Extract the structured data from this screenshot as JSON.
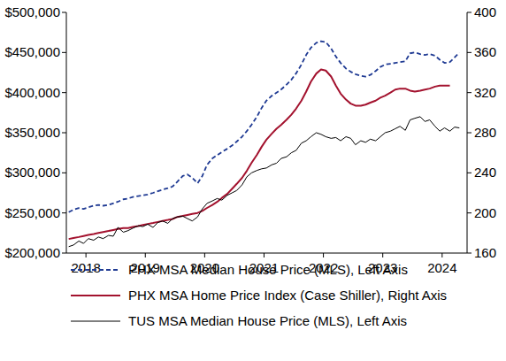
{
  "chart_data": {
    "type": "line",
    "x": [
      2018.21,
      2018.29,
      2018.38,
      2018.46,
      2018.54,
      2018.63,
      2018.71,
      2018.79,
      2018.88,
      2018.96,
      2019.04,
      2019.13,
      2019.21,
      2019.29,
      2019.38,
      2019.46,
      2019.54,
      2019.63,
      2019.71,
      2019.79,
      2019.88,
      2019.96,
      2020.04,
      2020.13,
      2020.21,
      2020.29,
      2020.38,
      2020.46,
      2020.54,
      2020.63,
      2020.71,
      2020.79,
      2020.88,
      2020.96,
      2021.04,
      2021.13,
      2021.21,
      2021.29,
      2021.38,
      2021.46,
      2021.54,
      2021.63,
      2021.71,
      2021.79,
      2021.88,
      2021.96,
      2022.04,
      2022.13,
      2022.21,
      2022.29,
      2022.38,
      2022.46,
      2022.54,
      2022.63,
      2022.71,
      2022.79,
      2022.88,
      2022.96,
      2023.04,
      2023.13,
      2023.21,
      2023.29,
      2023.38,
      2023.46,
      2023.54,
      2023.63,
      2023.71,
      2023.79,
      2023.88,
      2023.96,
      2024.04,
      2024.13,
      2024.21,
      2024.29,
      2024.38,
      2024.46,
      2024.54,
      2024.63,
      2024.71,
      2024.79
    ],
    "xlim": [
      2018.17,
      2024.92
    ],
    "xticks": [
      {
        "value": 2018.5,
        "label": "2018"
      },
      {
        "value": 2019.5,
        "label": "2019"
      },
      {
        "value": 2020.5,
        "label": "2020"
      },
      {
        "value": 2021.5,
        "label": "2021"
      },
      {
        "value": 2022.5,
        "label": "2022"
      },
      {
        "value": 2023.5,
        "label": "2023"
      },
      {
        "value": 2024.5,
        "label": "2024"
      }
    ],
    "ylim": [
      200000,
      500000
    ],
    "yticks": [
      {
        "value": 200000,
        "label": "$200,000"
      },
      {
        "value": 250000,
        "label": "$250,000"
      },
      {
        "value": 300000,
        "label": "$300,000"
      },
      {
        "value": 350000,
        "label": "$350,000"
      },
      {
        "value": 400000,
        "label": "$400,000"
      },
      {
        "value": 450000,
        "label": "$450,000"
      },
      {
        "value": 500000,
        "label": "$500,000"
      }
    ],
    "y2lim": [
      160,
      400
    ],
    "y2ticks": [
      160,
      200,
      240,
      280,
      320,
      360,
      400
    ],
    "grid": false,
    "legend": "bottom",
    "series": [
      {
        "name": "PHX MSA Median House Price (MLS), Left Axis",
        "color": "#1f3a93",
        "line_style": "dashed",
        "values": [
          251000,
          254000,
          256000,
          255000,
          257000,
          259000,
          260000,
          259000,
          260000,
          262000,
          264000,
          267000,
          268000,
          270000,
          271000,
          272000,
          273000,
          275000,
          277000,
          279000,
          281000,
          283000,
          289000,
          296000,
          298000,
          294000,
          287000,
          296000,
          310000,
          318000,
          322000,
          326000,
          330000,
          334000,
          339000,
          345000,
          352000,
          360000,
          370000,
          381000,
          390000,
          396000,
          400000,
          404000,
          410000,
          416000,
          424000,
          435000,
          447000,
          456000,
          462000,
          464000,
          463000,
          455000,
          445000,
          437000,
          430000,
          426000,
          423000,
          421000,
          420000,
          422000,
          427000,
          432000,
          435000,
          436000,
          437000,
          438000,
          439000,
          449000,
          450000,
          448000,
          447000,
          448000,
          446000,
          441000,
          437000,
          438000,
          444000,
          450000
        ]
      },
      {
        "name": "PHX MSA Home Price Index (Case Shiller), Right Axis",
        "color": "#a3122e",
        "line_style": "solid",
        "axis": "y2",
        "values": [
          174,
          175,
          176,
          177,
          178,
          179,
          180,
          181,
          182,
          183,
          184,
          185,
          185,
          186,
          187,
          188,
          189,
          190,
          191,
          192,
          193,
          194,
          196,
          197,
          198,
          199,
          200,
          202,
          205,
          208,
          211,
          215,
          219,
          224,
          229,
          235,
          242,
          250,
          258,
          266,
          273,
          279,
          284,
          288,
          293,
          298,
          304,
          312,
          321,
          331,
          339,
          343,
          342,
          336,
          327,
          319,
          313,
          309,
          307,
          307,
          308,
          310,
          312,
          315,
          317,
          320,
          323,
          324,
          324,
          322,
          321,
          322,
          323,
          324,
          326,
          327,
          327,
          327,
          null,
          null
        ]
      },
      {
        "name": "TUS MSA Median House Price (MLS), Left Axis",
        "color": "#000000",
        "line_style": "solid",
        "values": [
          208000,
          210000,
          215000,
          212000,
          218000,
          216000,
          220000,
          218000,
          222000,
          221000,
          232000,
          226000,
          228000,
          231000,
          234000,
          233000,
          236000,
          232000,
          238000,
          240000,
          237000,
          243000,
          245000,
          246000,
          243000,
          240000,
          245000,
          255000,
          262000,
          265000,
          268000,
          266000,
          272000,
          275000,
          278000,
          285000,
          295000,
          300000,
          303000,
          305000,
          306000,
          310000,
          312000,
          318000,
          320000,
          325000,
          328000,
          337000,
          340000,
          345000,
          350000,
          348000,
          345000,
          343000,
          344000,
          340000,
          345000,
          343000,
          335000,
          340000,
          338000,
          342000,
          340000,
          345000,
          350000,
          352000,
          355000,
          358000,
          353000,
          366000,
          368000,
          370000,
          364000,
          366000,
          358000,
          352000,
          356000,
          352000,
          357000,
          356000
        ]
      }
    ]
  }
}
